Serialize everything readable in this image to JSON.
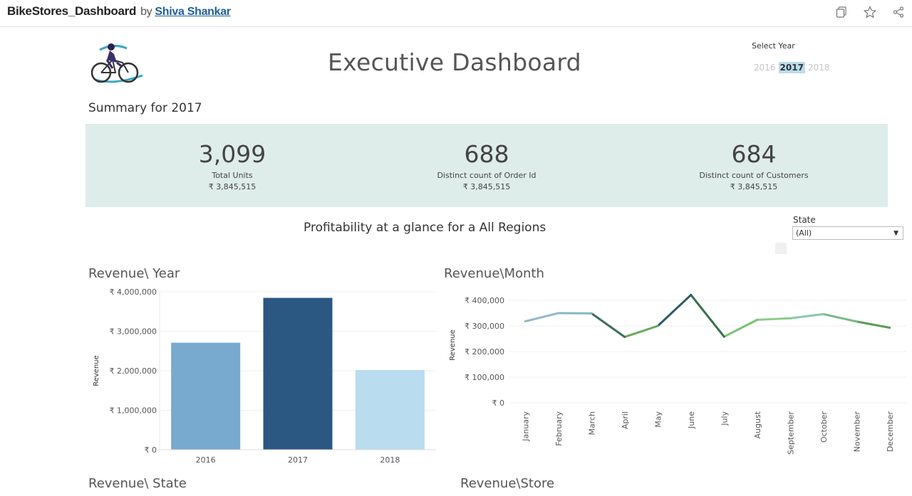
{
  "topbar": {
    "title": "BikeStores_Dashboard",
    "by": "by",
    "author": "Shiva Shankar",
    "icons": [
      "copy-icon",
      "star-icon",
      "share-icon"
    ]
  },
  "header": {
    "title": "Executive Dashboard",
    "year_filter_label": "Select Year",
    "years": [
      "2016",
      "2017",
      "2018"
    ],
    "selected_year": "2017"
  },
  "summary": {
    "title": "Summary for  2017",
    "kpis": [
      {
        "value": "3,099",
        "label": "Total Units",
        "sub": "₹ 3,845,515"
      },
      {
        "value": "688",
        "label": "Distinct count of Order Id",
        "sub": "₹ 3,845,515"
      },
      {
        "value": "684",
        "label": "Distinct count of Customers",
        "sub": "₹ 3,845,515"
      }
    ]
  },
  "profitability": {
    "title": "Profitability at a glance for  a All Regions",
    "state_label": "State",
    "state_value": "(All)"
  },
  "sections": {
    "revenue_year": "Revenue\\ Year",
    "revenue_month": "Revenue\\Month",
    "revenue_state": "Revenue\\ State",
    "revenue_store": "Revenue\\Store"
  },
  "chart_data": [
    {
      "type": "bar",
      "ylabel": "Revenue",
      "categories": [
        "2016",
        "2017",
        "2018"
      ],
      "values": [
        2710000,
        3845515,
        2020000
      ],
      "colors": [
        "#78a9cf",
        "#2b5783",
        "#b9dcef"
      ],
      "yticks": [
        0,
        1000000,
        2000000,
        3000000,
        4000000
      ],
      "ytick_labels": [
        "₹ 0",
        "₹ 1,000,000",
        "₹ 2,000,000",
        "₹ 3,000,000",
        "₹ 4,000,000"
      ],
      "ylim": [
        0,
        4000000
      ]
    },
    {
      "type": "line",
      "ylabel": "Revenue",
      "categories": [
        "January",
        "February",
        "March",
        "April",
        "May",
        "June",
        "July",
        "August",
        "September",
        "October",
        "November",
        "December"
      ],
      "values": [
        318000,
        350000,
        349000,
        257000,
        300000,
        421000,
        258000,
        324000,
        330000,
        346000,
        317000,
        293000
      ],
      "colors": [
        "#8dbdb8",
        "#8fb9c9",
        "#86b7c4",
        "#3d6e5a",
        "#66a85a",
        "#2c5a66",
        "#356f4c",
        "#7cc075",
        "#8ccd8a",
        "#8ac6ad",
        "#7ab987",
        "#5e9b58"
      ],
      "yticks": [
        0,
        100000,
        200000,
        300000,
        400000
      ],
      "ytick_labels": [
        "₹ 0",
        "₹ 100,000",
        "₹ 200,000",
        "₹ 300,000",
        "₹ 400,000"
      ],
      "ylim": [
        0,
        450000
      ]
    }
  ]
}
